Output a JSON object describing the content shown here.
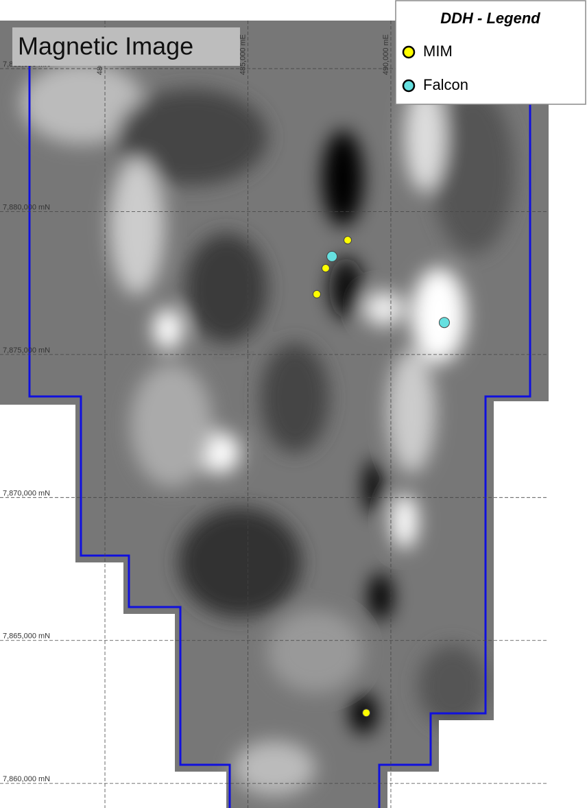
{
  "map": {
    "title": "Magnetic Image",
    "legend_title": "DDH - Legend",
    "xlim": [
      476330,
      496860
    ],
    "ylim": [
      7859140,
      7887400
    ],
    "xticks": [
      {
        "value": 480000,
        "label": "480,000 mE"
      },
      {
        "value": 485000,
        "label": "485,000 mE"
      },
      {
        "value": 490000,
        "label": "490,000 mE"
      }
    ],
    "yticks": [
      {
        "value": 7885000,
        "label": "7,885,000 mN"
      },
      {
        "value": 7880000,
        "label": "7,880,000 mN"
      },
      {
        "value": 7875000,
        "label": "7,875,000 mN"
      },
      {
        "value": 7870000,
        "label": "7,870,000 mN"
      },
      {
        "value": 7865000,
        "label": "7,865,000 mN"
      },
      {
        "value": 7860000,
        "label": "7,860,000 mN"
      }
    ],
    "series": [
      {
        "name": "MIM",
        "color": "#ffff00",
        "easting": [
          488490,
          487720,
          487410,
          489140
        ],
        "northing": [
          7879000,
          7878020,
          7877110,
          7862470
        ]
      },
      {
        "name": "Falcon",
        "color": "#66e0e0",
        "easting": [
          487940,
          491870
        ],
        "northing": [
          7878430,
          7876120
        ]
      }
    ]
  }
}
